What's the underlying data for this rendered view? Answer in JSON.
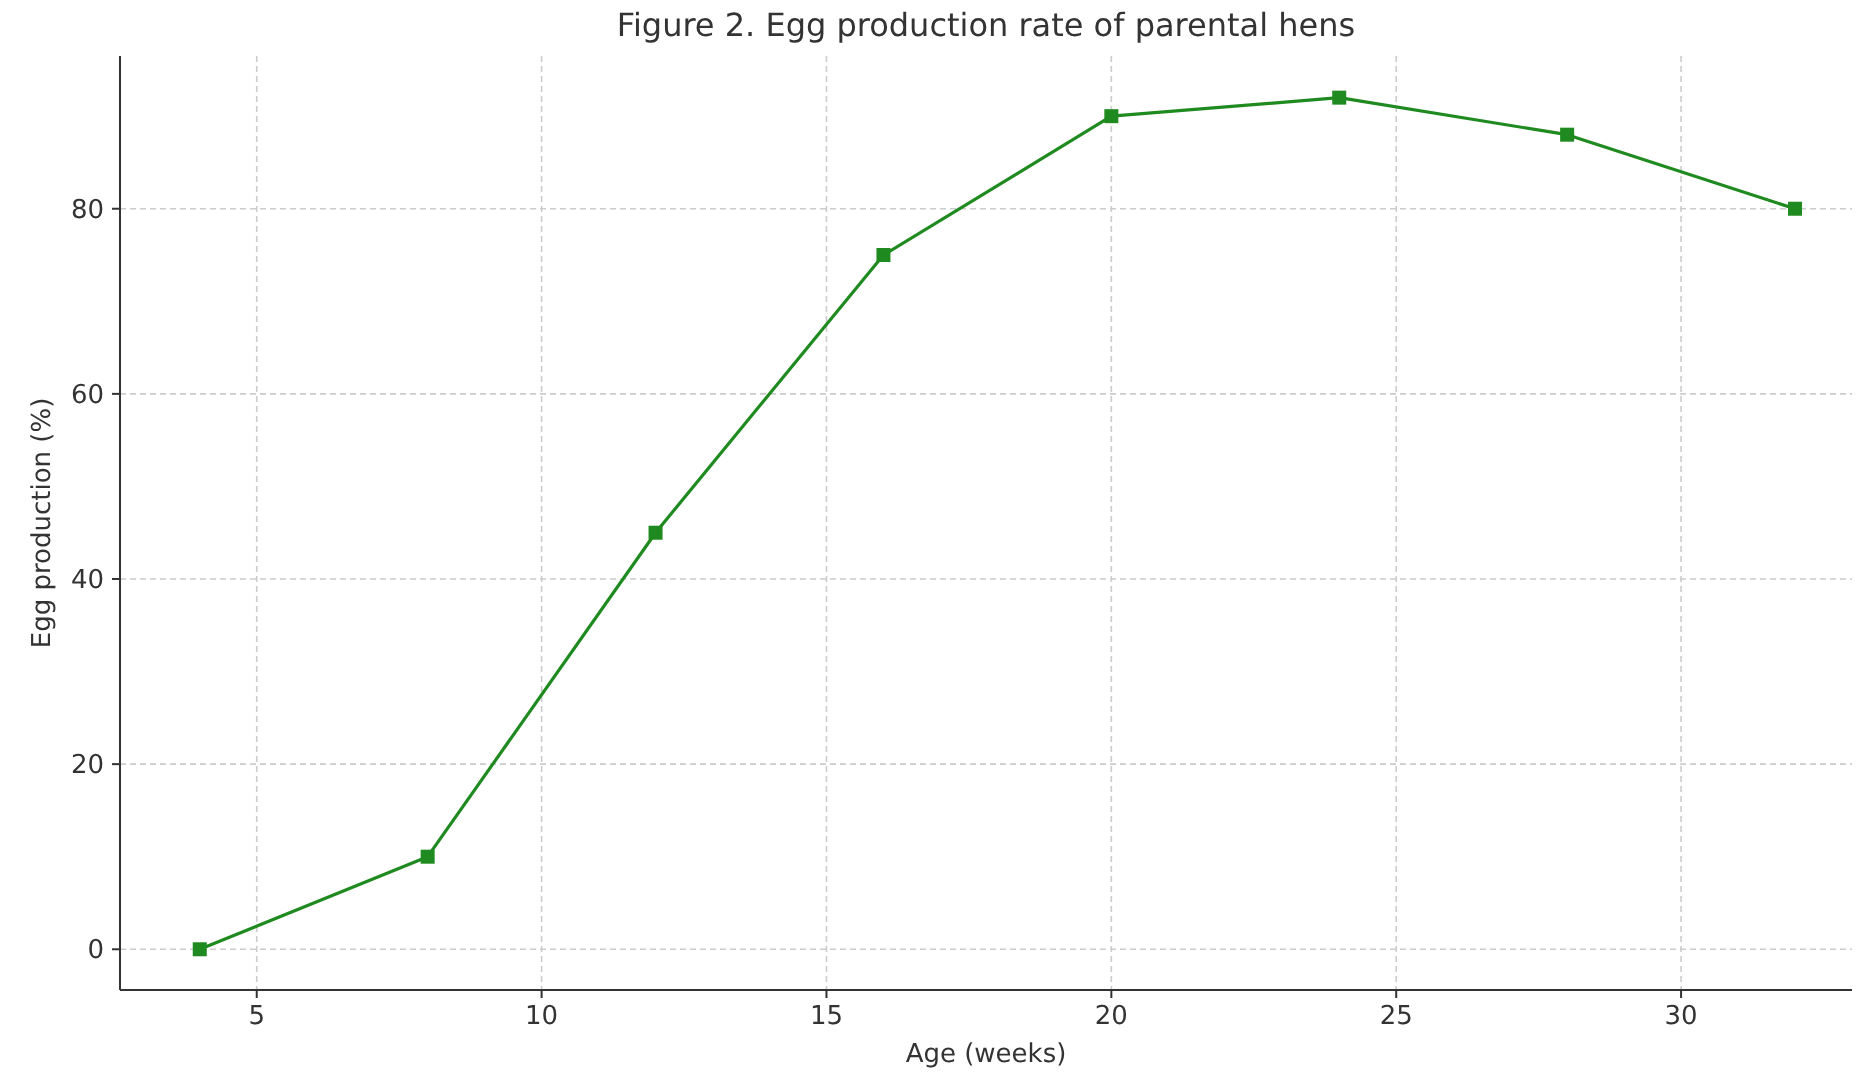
{
  "chart_data": {
    "type": "line",
    "title": "Figure 2. Egg production rate of parental hens",
    "xlabel": "Age (weeks)",
    "ylabel": "Egg production (%)",
    "x": [
      4,
      8,
      12,
      16,
      20,
      24,
      28,
      32
    ],
    "series": [
      {
        "color": "#1f8a1f",
        "values": [
          0,
          10,
          45,
          75,
          90,
          92,
          88,
          80
        ]
      }
    ],
    "xlim": [
      2.6,
      33
    ],
    "ylim": [
      -4.4,
      96.5
    ],
    "xticks": [
      5,
      10,
      15,
      20,
      25,
      30
    ],
    "yticks": [
      0,
      20,
      40,
      60,
      80
    ],
    "grid": true,
    "marker": "square",
    "line_style": "solid"
  }
}
